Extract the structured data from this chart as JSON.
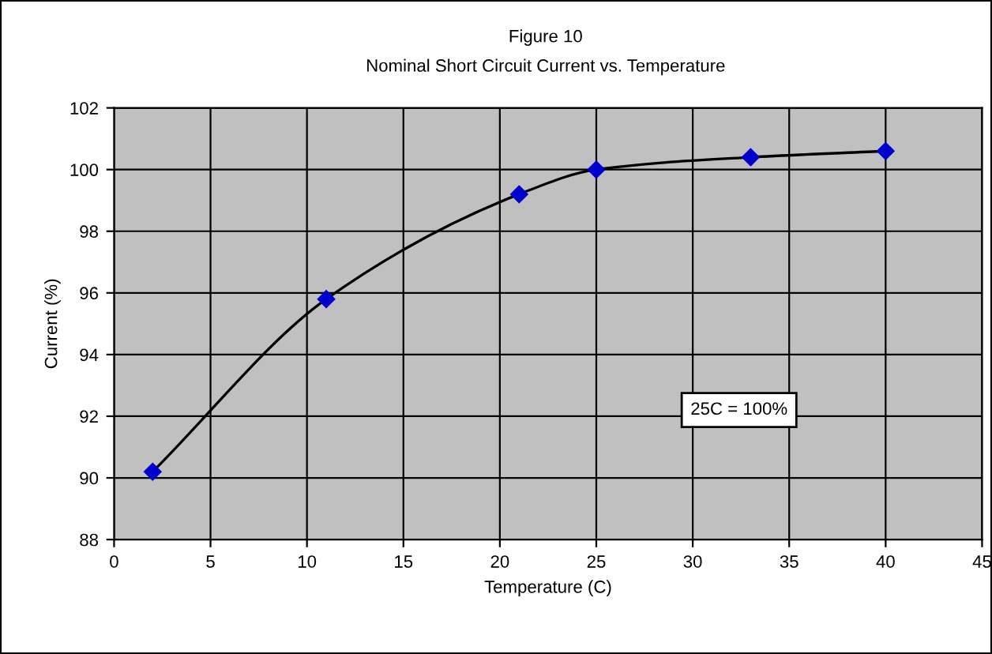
{
  "chart_data": {
    "type": "line",
    "title": "Figure 10",
    "subtitle": "Nominal Short Circuit Current vs. Temperature",
    "xlabel": "Temperature (C)",
    "ylabel": "Current (%)",
    "series": [
      {
        "color": "#0000cc",
        "x": [
          2,
          11,
          21,
          25,
          33,
          40
        ],
        "values": [
          90.2,
          95.8,
          99.2,
          100.0,
          100.4,
          100.6
        ]
      }
    ],
    "xlim": [
      0,
      45
    ],
    "xticks": [
      0,
      5,
      10,
      15,
      20,
      25,
      30,
      35,
      40,
      45
    ],
    "ylim": [
      88,
      102
    ],
    "yticks": [
      88,
      90,
      92,
      94,
      96,
      98,
      100,
      102
    ],
    "grid": true,
    "marker": "diamond",
    "line_style": "solid",
    "annotations": [
      "25C = 100%"
    ]
  }
}
